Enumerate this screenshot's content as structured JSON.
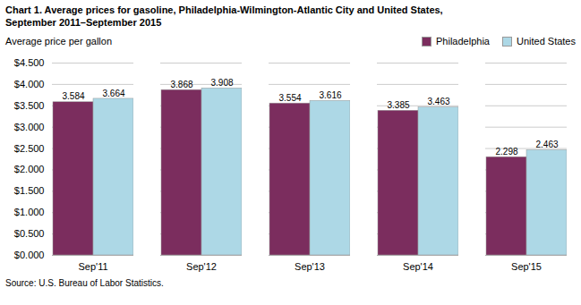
{
  "chart_data": {
    "type": "bar",
    "title": "Chart 1. Average prices for gasoline, Philadelphia-Wilmington-Atlantic City and United States,",
    "subtitle": "September 2011–September 2015",
    "ylabel": "Average price per gallon",
    "source": "Source: U.S. Bureau of Labor Statistics.",
    "categories": [
      "Sep'11",
      "Sep'12",
      "Sep'13",
      "Sep'14",
      "Sep'15"
    ],
    "series": [
      {
        "name": "Philadelphia",
        "color": "#7B2D5E",
        "values": [
          3.584,
          3.868,
          3.554,
          3.385,
          2.298
        ]
      },
      {
        "name": "United States",
        "color": "#ADD8E6",
        "values": [
          3.664,
          3.908,
          3.616,
          3.463,
          2.463
        ]
      }
    ],
    "ylim": [
      0,
      4.5
    ],
    "yticks": [
      {
        "value": 0.0,
        "label": "$0.000"
      },
      {
        "value": 0.5,
        "label": "$0.500"
      },
      {
        "value": 1.0,
        "label": "$1.000"
      },
      {
        "value": 1.5,
        "label": "$1.500"
      },
      {
        "value": 2.0,
        "label": "$2.000"
      },
      {
        "value": 2.5,
        "label": "$2.500"
      },
      {
        "value": 3.0,
        "label": "$3.000"
      },
      {
        "value": 3.5,
        "label": "$3.500"
      },
      {
        "value": 4.0,
        "label": "$4.000"
      },
      {
        "value": 4.5,
        "label": "$4.500"
      }
    ],
    "grid": true,
    "legend": "upper right",
    "data_labels": true
  }
}
